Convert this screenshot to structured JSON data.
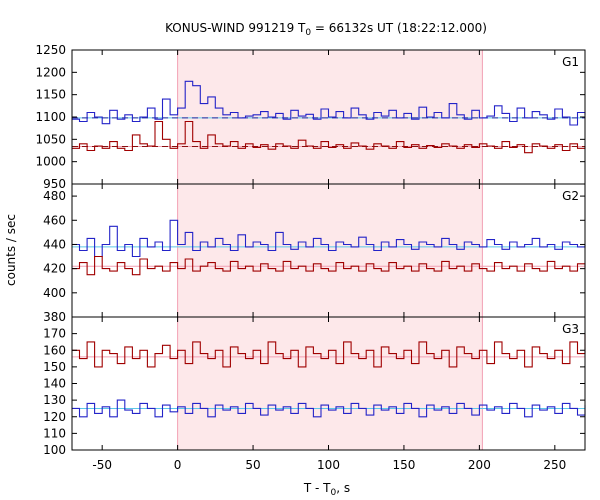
{
  "chart_data": {
    "type": "line",
    "title_main": "KONUS-WIND 991219 T",
    "title_sub": "0",
    "title_rest": " = 66132s UT (18:22:12.000)",
    "xlabel_main": "T - T",
    "xlabel_sub": "0",
    "xlabel_rest": ", s",
    "ylabel": "counts / sec",
    "xlim": [
      -70,
      270
    ],
    "x_ticks": [
      -50,
      0,
      50,
      100,
      150,
      200,
      250
    ],
    "highlight_interval": [
      0,
      202
    ],
    "colors": {
      "highlight": "#fde8ea",
      "blue": "#2323c8",
      "red": "#a00000",
      "cyan": "#5cc8e8",
      "pink": "#f2a0b4",
      "axis": "#000000"
    },
    "panels": [
      {
        "label": "G1",
        "ylim": [
          950,
          1250
        ],
        "y_ticks": [
          950,
          1000,
          1050,
          1100,
          1150,
          1200,
          1250
        ],
        "background_levels": {
          "blue": 1098,
          "red": 1034
        },
        "series": [
          {
            "color": "blue",
            "x": [
              -70,
              -65,
              -60,
              -55,
              -50,
              -45,
              -40,
              -35,
              -30,
              -25,
              -20,
              -15,
              -10,
              -5,
              0,
              5,
              10,
              15,
              20,
              25,
              30,
              35,
              40,
              45,
              50,
              55,
              60,
              65,
              70,
              75,
              80,
              85,
              90,
              95,
              100,
              105,
              110,
              115,
              120,
              125,
              130,
              135,
              140,
              145,
              150,
              155,
              160,
              165,
              170,
              175,
              180,
              185,
              190,
              195,
              200,
              205,
              210,
              215,
              220,
              225,
              230,
              235,
              240,
              245,
              250,
              255,
              260,
              265,
              270
            ],
            "y": [
              1095,
              1090,
              1110,
              1100,
              1085,
              1115,
              1095,
              1105,
              1090,
              1100,
              1120,
              1095,
              1140,
              1105,
              1120,
              1180,
              1170,
              1130,
              1145,
              1120,
              1105,
              1110,
              1098,
              1102,
              1105,
              1112,
              1100,
              1108,
              1095,
              1115,
              1102,
              1106,
              1095,
              1118,
              1100,
              1112,
              1098,
              1120,
              1105,
              1095,
              1110,
              1102,
              1115,
              1098,
              1108,
              1095,
              1122,
              1100,
              1110,
              1098,
              1130,
              1105,
              1095,
              1115,
              1098,
              1102,
              1125,
              1108,
              1090,
              1120,
              1098,
              1112,
              1105,
              1095,
              1118,
              1100,
              1082,
              1110,
              1105
            ]
          },
          {
            "color": "red",
            "x": [
              -70,
              -65,
              -60,
              -55,
              -50,
              -45,
              -40,
              -35,
              -30,
              -25,
              -20,
              -15,
              -10,
              -5,
              0,
              5,
              10,
              15,
              20,
              25,
              30,
              35,
              40,
              45,
              50,
              55,
              60,
              65,
              70,
              75,
              80,
              85,
              90,
              95,
              100,
              105,
              110,
              115,
              120,
              125,
              130,
              135,
              140,
              145,
              150,
              155,
              160,
              165,
              170,
              175,
              180,
              185,
              190,
              195,
              200,
              205,
              210,
              215,
              220,
              225,
              230,
              235,
              240,
              245,
              250,
              255,
              260,
              265,
              270
            ],
            "y": [
              1030,
              1040,
              1025,
              1035,
              1030,
              1045,
              1030,
              1025,
              1060,
              1040,
              1035,
              1090,
              1050,
              1030,
              1040,
              1090,
              1045,
              1030,
              1060,
              1040,
              1035,
              1045,
              1030,
              1040,
              1032,
              1038,
              1028,
              1040,
              1035,
              1030,
              1048,
              1035,
              1030,
              1045,
              1032,
              1038,
              1030,
              1042,
              1035,
              1028,
              1040,
              1035,
              1030,
              1045,
              1032,
              1038,
              1030,
              1036,
              1032,
              1040,
              1035,
              1030,
              1038,
              1032,
              1040,
              1035,
              1030,
              1045,
              1032,
              1038,
              1020,
              1040,
              1035,
              1030,
              1038,
              1025,
              1040,
              1030,
              1035
            ]
          }
        ]
      },
      {
        "label": "G2",
        "ylim": [
          380,
          490
        ],
        "y_ticks": [
          380,
          400,
          420,
          440,
          460,
          480
        ],
        "background_levels": {
          "blue": 438,
          "red": 422
        },
        "series": [
          {
            "color": "blue",
            "x": [
              -70,
              -65,
              -60,
              -55,
              -50,
              -45,
              -40,
              -35,
              -30,
              -25,
              -20,
              -15,
              -10,
              -5,
              0,
              5,
              10,
              15,
              20,
              25,
              30,
              35,
              40,
              45,
              50,
              55,
              60,
              65,
              70,
              75,
              80,
              85,
              90,
              95,
              100,
              105,
              110,
              115,
              120,
              125,
              130,
              135,
              140,
              145,
              150,
              155,
              160,
              165,
              170,
              175,
              180,
              185,
              190,
              195,
              200,
              205,
              210,
              215,
              220,
              225,
              230,
              235,
              240,
              245,
              250,
              255,
              260,
              265,
              270
            ],
            "y": [
              440,
              435,
              445,
              430,
              440,
              455,
              435,
              440,
              430,
              445,
              438,
              442,
              435,
              460,
              440,
              450,
              435,
              442,
              438,
              445,
              440,
              435,
              448,
              438,
              442,
              440,
              435,
              450,
              440,
              436,
              442,
              438,
              445,
              440,
              435,
              442,
              440,
              438,
              446,
              440,
              435,
              442,
              438,
              444,
              440,
              436,
              442,
              440,
              438,
              445,
              440,
              436,
              442,
              440,
              438,
              444,
              440,
              436,
              442,
              438,
              440,
              445,
              438,
              440,
              436,
              442,
              440,
              438,
              440
            ]
          },
          {
            "color": "red",
            "x": [
              -70,
              -65,
              -60,
              -55,
              -50,
              -45,
              -40,
              -35,
              -30,
              -25,
              -20,
              -15,
              -10,
              -5,
              0,
              5,
              10,
              15,
              20,
              25,
              30,
              35,
              40,
              45,
              50,
              55,
              60,
              65,
              70,
              75,
              80,
              85,
              90,
              95,
              100,
              105,
              110,
              115,
              120,
              125,
              130,
              135,
              140,
              145,
              150,
              155,
              160,
              165,
              170,
              175,
              180,
              185,
              190,
              195,
              200,
              205,
              210,
              215,
              220,
              225,
              230,
              235,
              240,
              245,
              250,
              255,
              260,
              265,
              270
            ],
            "y": [
              420,
              425,
              415,
              430,
              420,
              418,
              425,
              420,
              415,
              428,
              420,
              422,
              418,
              425,
              420,
              428,
              418,
              422,
              425,
              420,
              418,
              426,
              420,
              422,
              418,
              424,
              420,
              418,
              426,
              420,
              422,
              418,
              424,
              420,
              418,
              425,
              420,
              422,
              418,
              424,
              420,
              418,
              425,
              420,
              422,
              418,
              424,
              420,
              418,
              426,
              420,
              422,
              418,
              424,
              420,
              418,
              425,
              420,
              422,
              418,
              424,
              420,
              418,
              426,
              420,
              422,
              418,
              424,
              420
            ]
          }
        ]
      },
      {
        "label": "G3",
        "ylim": [
          100,
          180
        ],
        "y_ticks": [
          100,
          110,
          120,
          130,
          140,
          150,
          160,
          170
        ],
        "background_levels": {
          "blue": 125,
          "red": 156
        },
        "series": [
          {
            "color": "blue",
            "x": [
              -70,
              -65,
              -60,
              -55,
              -50,
              -45,
              -40,
              -35,
              -30,
              -25,
              -20,
              -15,
              -10,
              -5,
              0,
              5,
              10,
              15,
              20,
              25,
              30,
              35,
              40,
              45,
              50,
              55,
              60,
              65,
              70,
              75,
              80,
              85,
              90,
              95,
              100,
              105,
              110,
              115,
              120,
              125,
              130,
              135,
              140,
              145,
              150,
              155,
              160,
              165,
              170,
              175,
              180,
              185,
              190,
              195,
              200,
              205,
              210,
              215,
              220,
              225,
              230,
              235,
              240,
              245,
              250,
              255,
              260,
              265,
              270
            ],
            "y": [
              125,
              120,
              128,
              122,
              126,
              120,
              130,
              124,
              122,
              128,
              125,
              120,
              127,
              123,
              126,
              122,
              128,
              125,
              120,
              127,
              124,
              126,
              122,
              128,
              125,
              121,
              127,
              124,
              126,
              122,
              128,
              125,
              120,
              127,
              124,
              126,
              122,
              128,
              125,
              121,
              127,
              124,
              126,
              122,
              128,
              125,
              120,
              127,
              124,
              126,
              122,
              128,
              125,
              121,
              127,
              124,
              126,
              122,
              128,
              125,
              120,
              127,
              124,
              126,
              122,
              128,
              125,
              121,
              127
            ]
          },
          {
            "color": "red",
            "x": [
              -70,
              -65,
              -60,
              -55,
              -50,
              -45,
              -40,
              -35,
              -30,
              -25,
              -20,
              -15,
              -10,
              -5,
              0,
              5,
              10,
              15,
              20,
              25,
              30,
              35,
              40,
              45,
              50,
              55,
              60,
              65,
              70,
              75,
              80,
              85,
              90,
              95,
              100,
              105,
              110,
              115,
              120,
              125,
              130,
              135,
              140,
              145,
              150,
              155,
              160,
              165,
              170,
              175,
              180,
              185,
              190,
              195,
              200,
              205,
              210,
              215,
              220,
              225,
              230,
              235,
              240,
              245,
              250,
              255,
              260,
              265,
              270
            ],
            "y": [
              160,
              155,
              165,
              150,
              160,
              158,
              152,
              162,
              155,
              160,
              150,
              158,
              163,
              155,
              160,
              152,
              165,
              158,
              155,
              160,
              150,
              162,
              158,
              155,
              160,
              152,
              165,
              158,
              155,
              160,
              150,
              162,
              158,
              155,
              160,
              152,
              165,
              158,
              155,
              160,
              150,
              162,
              158,
              155,
              160,
              152,
              165,
              158,
              155,
              160,
              150,
              162,
              158,
              155,
              160,
              152,
              165,
              158,
              155,
              160,
              150,
              162,
              158,
              155,
              160,
              152,
              165,
              158,
              170
            ]
          }
        ]
      }
    ]
  }
}
